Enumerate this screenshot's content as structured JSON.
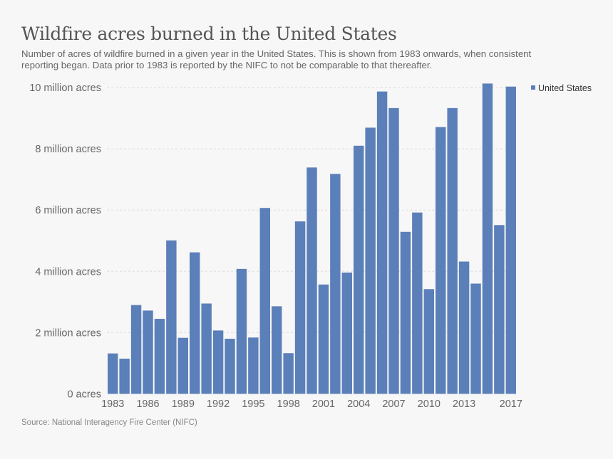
{
  "header": {
    "title": "Wildfire acres burned in the United States",
    "subtitle": "Number of acres of wildfire burned in a given year in the United States. This is shown from 1983 onwards, when consistent reporting began. Data prior to 1983 is reported by the NIFC to not be comparable to that thereafter."
  },
  "footer": {
    "source": "Source: National Interagency Fire Center (NIFC)"
  },
  "chart_data": {
    "type": "bar",
    "title": "Wildfire acres burned in the United States",
    "xlabel": "",
    "ylabel": "",
    "ylim": [
      0,
      10000000
    ],
    "grid": true,
    "legend_position": "top-right",
    "y_ticks": [
      {
        "value": 0,
        "label": "0 acres"
      },
      {
        "value": 2000000,
        "label": "2 million acres"
      },
      {
        "value": 4000000,
        "label": "4 million acres"
      },
      {
        "value": 6000000,
        "label": "6 million acres"
      },
      {
        "value": 8000000,
        "label": "8 million acres"
      },
      {
        "value": 10000000,
        "label": "10 million acres"
      }
    ],
    "x_tick_labels": [
      "1983",
      "1986",
      "1989",
      "1992",
      "1995",
      "1998",
      "2001",
      "2004",
      "2007",
      "2010",
      "2013",
      "2017"
    ],
    "categories": [
      "1983",
      "1984",
      "1985",
      "1986",
      "1987",
      "1988",
      "1989",
      "1990",
      "1991",
      "1992",
      "1993",
      "1994",
      "1995",
      "1996",
      "1997",
      "1998",
      "1999",
      "2000",
      "2001",
      "2002",
      "2003",
      "2004",
      "2005",
      "2006",
      "2007",
      "2008",
      "2009",
      "2010",
      "2011",
      "2012",
      "2013",
      "2014",
      "2015",
      "2016",
      "2017"
    ],
    "series": [
      {
        "name": "United States",
        "color": "#5b7fb9",
        "values": [
          1320000,
          1150000,
          2900000,
          2720000,
          2450000,
          5010000,
          1830000,
          4620000,
          2950000,
          2070000,
          1800000,
          4080000,
          1840000,
          6070000,
          2860000,
          1330000,
          5630000,
          7390000,
          3570000,
          7180000,
          3960000,
          8100000,
          8690000,
          9870000,
          9330000,
          5290000,
          5920000,
          3420000,
          8710000,
          9330000,
          4320000,
          3600000,
          10130000,
          5510000,
          10030000
        ]
      }
    ]
  }
}
